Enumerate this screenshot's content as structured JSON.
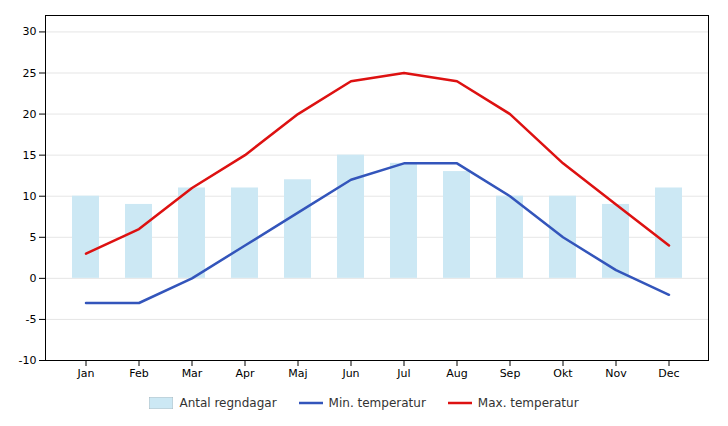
{
  "chart_data": {
    "type": "bar",
    "categories": [
      "Jan",
      "Feb",
      "Mar",
      "Apr",
      "Maj",
      "Jun",
      "Jul",
      "Aug",
      "Sep",
      "Okt",
      "Nov",
      "Dec"
    ],
    "series": [
      {
        "name": "Antal regndagar",
        "type": "bar",
        "color": "#cce8f4",
        "values": [
          10,
          9,
          11,
          11,
          12,
          15,
          14,
          13,
          10,
          10,
          9,
          11
        ]
      },
      {
        "name": "Min. temperatur",
        "type": "line",
        "color": "#3355bb",
        "values": [
          -3,
          -3,
          0,
          4,
          8,
          12,
          14,
          14,
          10,
          5,
          1,
          -2
        ]
      },
      {
        "name": "Max. temperatur",
        "type": "line",
        "color": "#dd1111",
        "values": [
          3,
          6,
          11,
          15,
          20,
          24,
          25,
          24,
          20,
          14,
          9,
          4
        ]
      }
    ],
    "ylim": [
      -10,
      32
    ],
    "yticks": [
      -10,
      -5,
      0,
      5,
      10,
      15,
      20,
      25,
      30
    ],
    "grid": true,
    "legend": "bottom"
  }
}
